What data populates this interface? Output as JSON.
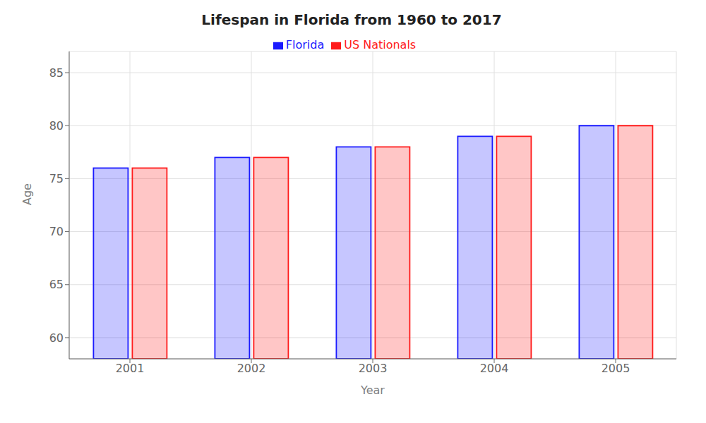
{
  "chart_data": {
    "type": "bar",
    "title": "Lifespan in Florida from 1960 to 2017",
    "xlabel": "Year",
    "ylabel": "Age",
    "categories": [
      "2001",
      "2002",
      "2003",
      "2004",
      "2005"
    ],
    "series": [
      {
        "name": "Florida",
        "color": "#1a1aff",
        "values": [
          76,
          77,
          78,
          79,
          80
        ]
      },
      {
        "name": "US Nationals",
        "color": "#ff1a1a",
        "values": [
          76,
          77,
          78,
          79,
          80
        ]
      }
    ],
    "ylim": [
      58,
      87
    ],
    "yticks": [
      60,
      65,
      70,
      75,
      80,
      85
    ],
    "grid": true,
    "legend": "top"
  }
}
